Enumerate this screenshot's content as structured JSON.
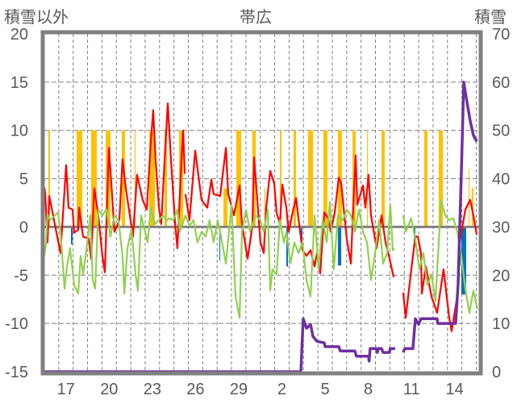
{
  "chart_data": {
    "type": "line",
    "title": "帯広",
    "ylabel": "積雪以外",
    "y2label": "積雪",
    "ylim": [
      -15,
      20
    ],
    "y2lim": [
      0,
      70
    ],
    "xlim": [
      0,
      30.2
    ],
    "yticks": [
      "20",
      "15",
      "10",
      "5",
      "0",
      "-5",
      "-10",
      "-15"
    ],
    "y2ticks": [
      "70",
      "60",
      "50",
      "40",
      "30",
      "20",
      "10",
      "0"
    ],
    "ytick_values": [
      20,
      15,
      10,
      5,
      0,
      -5,
      -10,
      -15
    ],
    "y2tick_values": [
      70,
      60,
      50,
      40,
      30,
      20,
      10,
      0
    ],
    "xtick_labels": [
      "17",
      "20",
      "23",
      "26",
      "29",
      "2",
      "5",
      "8",
      "11",
      "14"
    ],
    "xtick_positions_days": [
      1.5,
      4.5,
      7.5,
      10.5,
      13.5,
      16.5,
      19.5,
      22.5,
      25.5,
      28.5
    ],
    "grid": true,
    "colors": {
      "red": "#ff0000",
      "green": "#92d050",
      "purple": "#7030a0",
      "orange": "#ffc000",
      "blue": "#0070c0",
      "axis": "#808080"
    },
    "series": [
      {
        "name": "red",
        "axis": "left",
        "points": [
          [
            0,
            4.1
          ],
          [
            0.06,
            3.4
          ],
          [
            0.22,
            -1.6
          ],
          [
            0.34,
            3.2
          ],
          [
            1.12,
            -2.7
          ],
          [
            1.51,
            6.4
          ],
          [
            1.68,
            2.0
          ],
          [
            1.96,
            1.8
          ],
          [
            2.07,
            -0.6
          ],
          [
            2.35,
            -0.3
          ],
          [
            2.41,
            2.0
          ],
          [
            2.69,
            -1.0
          ],
          [
            3.08,
            -1.2
          ],
          [
            3.25,
            -3.3
          ],
          [
            3.47,
            4.0
          ],
          [
            3.75,
            1.2
          ],
          [
            4.03,
            -3.0
          ],
          [
            4.2,
            -4.7
          ],
          [
            4.48,
            8.2
          ],
          [
            4.65,
            4.5
          ],
          [
            4.87,
            -0.5
          ],
          [
            5.21,
            0.7
          ],
          [
            5.43,
            7.0
          ],
          [
            5.66,
            4.0
          ],
          [
            6.16,
            -1.0
          ],
          [
            6.44,
            5.4
          ],
          [
            6.83,
            2.8
          ],
          [
            7.11,
            1.8
          ],
          [
            7.39,
            8.7
          ],
          [
            7.56,
            12.1
          ],
          [
            7.73,
            6.8
          ],
          [
            7.96,
            2.0
          ],
          [
            8.12,
            0.3
          ],
          [
            8.4,
            8.2
          ],
          [
            8.57,
            12.8
          ],
          [
            8.8,
            6.8
          ],
          [
            9.08,
            0.3
          ],
          [
            9.24,
            -2.2
          ],
          [
            9.52,
            6.8
          ],
          [
            9.64,
            10.0
          ],
          [
            9.75,
            5.5
          ],
          null,
          [
            9.8,
            3.4
          ],
          [
            10.08,
            0.7
          ],
          [
            10.48,
            7.9
          ],
          [
            10.92,
            2.8
          ],
          [
            11.32,
            2.0
          ],
          [
            11.6,
            4.9
          ],
          [
            11.76,
            3.4
          ],
          [
            12.21,
            3.2
          ],
          [
            12.61,
            8.2
          ],
          [
            12.77,
            3.4
          ],
          [
            13.17,
            1.2
          ],
          [
            13.56,
            4.3
          ],
          [
            13.73,
            0.3
          ],
          [
            14.12,
            -3.3
          ],
          [
            14.45,
            0.1
          ],
          [
            14.57,
            7.2
          ],
          [
            14.73,
            4.0
          ],
          [
            15.01,
            -1.6
          ],
          [
            15.24,
            -2.7
          ],
          [
            15.41,
            2.0
          ],
          [
            15.69,
            5.8
          ],
          [
            15.97,
            4.5
          ],
          [
            16.13,
            1.5
          ],
          [
            16.36,
            0.3
          ],
          [
            16.53,
            4.4
          ],
          [
            16.81,
            2.0
          ],
          [
            16.97,
            -0.5
          ],
          [
            17.2,
            1.2
          ],
          [
            17.48,
            3.0
          ],
          [
            17.65,
            0.9
          ],
          [
            17.93,
            -2.4
          ],
          [
            18.21,
            -3.0
          ],
          [
            18.49,
            -2.4
          ],
          [
            18.77,
            -4.1
          ],
          [
            18.94,
            -2.7
          ],
          [
            19.16,
            -4.8
          ],
          [
            19.44,
            1.5
          ],
          [
            19.72,
            0.9
          ],
          [
            19.89,
            -0.5
          ],
          [
            20.17,
            1.5
          ],
          [
            20.45,
            5.1
          ],
          [
            20.62,
            4.5
          ],
          [
            21.01,
            -1.3
          ],
          [
            21.29,
            -3.8
          ],
          [
            21.46,
            2.3
          ],
          [
            21.62,
            7.4
          ],
          [
            21.74,
            2.3
          ],
          [
            22.13,
            4.3
          ],
          [
            22.3,
            2.0
          ],
          [
            22.52,
            5.4
          ],
          [
            22.69,
            1.2
          ],
          [
            23.08,
            -2.2
          ],
          [
            23.42,
            1.2
          ],
          [
            23.7,
            -1.6
          ],
          [
            23.98,
            -3.3
          ],
          [
            24.26,
            -5.2
          ],
          null,
          [
            24.93,
            -6.8
          ],
          [
            25.1,
            -9.4
          ],
          [
            25.49,
            -4.4
          ],
          [
            25.77,
            -1.0
          ],
          [
            25.94,
            -1.0
          ],
          [
            26.16,
            -2.7
          ],
          [
            26.22,
            -6.9
          ],
          [
            26.5,
            -4.1
          ],
          [
            26.89,
            -7.2
          ],
          [
            27.28,
            -8.9
          ],
          [
            27.73,
            -4.4
          ],
          [
            28.12,
            -9.4
          ],
          [
            28.29,
            -10.8
          ],
          [
            28.68,
            -7.2
          ],
          [
            28.85,
            -1.6
          ],
          [
            29.24,
            1.8
          ],
          [
            29.58,
            2.8
          ],
          [
            29.8,
            1.2
          ],
          [
            30.03,
            -0.8
          ]
        ]
      },
      {
        "name": "green",
        "axis": "left",
        "points": [
          [
            0,
            -3.0
          ],
          [
            0.11,
            -1.8
          ],
          [
            0.22,
            1.3
          ],
          [
            0.39,
            0.7
          ],
          [
            0.95,
            1.5
          ],
          [
            1.12,
            -0.5
          ],
          [
            1.4,
            -6.4
          ],
          [
            1.57,
            -4.1
          ],
          [
            1.79,
            -2.2
          ],
          [
            2.07,
            -6.0
          ],
          [
            2.35,
            -6.9
          ],
          [
            2.52,
            -3.0
          ],
          [
            2.69,
            -4.9
          ],
          [
            2.97,
            -1.8
          ],
          [
            3.19,
            1.2
          ],
          [
            3.36,
            -5.5
          ],
          [
            3.53,
            -6.4
          ],
          [
            3.75,
            1.8
          ],
          [
            4.03,
            1.2
          ],
          [
            4.31,
            1.8
          ],
          [
            4.59,
            -1.0
          ],
          [
            4.87,
            1.2
          ],
          [
            5.15,
            0.7
          ],
          [
            5.43,
            -3.0
          ],
          [
            5.55,
            -6.9
          ],
          [
            5.77,
            -2.2
          ],
          [
            6.05,
            -0.2
          ],
          [
            6.33,
            -4.9
          ],
          [
            6.5,
            -6.6
          ],
          [
            6.72,
            1.2
          ],
          [
            7.0,
            -0.5
          ],
          [
            7.17,
            -1.6
          ],
          [
            7.39,
            2.0
          ],
          [
            7.68,
            0.3
          ],
          [
            7.96,
            0.7
          ],
          [
            8.24,
            1.2
          ],
          [
            8.52,
            0.7
          ],
          [
            8.68,
            0.9
          ],
          [
            8.96,
            0.7
          ],
          [
            9.24,
            1.8
          ],
          [
            9.41,
            -0.5
          ],
          [
            9.8,
            1.2
          ],
          [
            10.08,
            0.1
          ],
          [
            10.36,
            0.7
          ],
          [
            10.64,
            -1.6
          ],
          [
            10.92,
            -0.5
          ],
          [
            11.2,
            -1.0
          ],
          [
            11.48,
            0.7
          ],
          [
            11.76,
            -1.6
          ],
          [
            12.04,
            0.7
          ],
          [
            12.21,
            -0.5
          ],
          [
            12.61,
            -3.8
          ],
          [
            13.0,
            2.3
          ],
          [
            13.28,
            -7.2
          ],
          [
            13.56,
            -9.4
          ],
          [
            13.73,
            -0.5
          ],
          [
            14.01,
            1.8
          ],
          [
            14.29,
            -0.5
          ],
          [
            14.68,
            1.2
          ],
          [
            15.01,
            0.7
          ],
          [
            15.24,
            -0.5
          ],
          [
            15.52,
            1.8
          ],
          [
            15.69,
            -6.6
          ],
          [
            15.85,
            -4.4
          ],
          [
            16.13,
            -4.9
          ],
          [
            16.36,
            0.7
          ],
          [
            16.64,
            -1.6
          ],
          [
            16.81,
            -0.5
          ],
          [
            17.09,
            -3.8
          ],
          [
            17.37,
            -1.6
          ],
          [
            17.65,
            -2.7
          ],
          [
            17.93,
            -1.6
          ],
          [
            18.21,
            -5.5
          ],
          [
            18.49,
            -7.2
          ],
          [
            18.77,
            1.2
          ],
          [
            19.05,
            -4.4
          ],
          [
            19.33,
            0.7
          ],
          [
            19.61,
            -1.6
          ],
          [
            19.83,
            2.6
          ],
          [
            20.11,
            -4.4
          ],
          [
            20.39,
            1.2
          ],
          [
            20.73,
            0.7
          ],
          [
            21.01,
            1.8
          ],
          [
            21.29,
            1.2
          ],
          [
            21.57,
            -0.5
          ],
          [
            21.85,
            1.8
          ],
          [
            22.13,
            -0.5
          ],
          [
            22.41,
            -1.6
          ],
          [
            22.69,
            -5.5
          ],
          [
            22.97,
            -2.7
          ],
          [
            23.25,
            0.7
          ],
          [
            23.53,
            -3.8
          ],
          [
            23.81,
            -2.7
          ],
          [
            24.03,
            2.3
          ],
          [
            24.2,
            -2.4
          ],
          [
            24.31,
            -2.2
          ],
          null,
          [
            24.93,
            1.2
          ],
          [
            25.1,
            -0.5
          ],
          [
            25.49,
            0.9
          ],
          [
            25.77,
            -1.3
          ],
          [
            26.05,
            -4.4
          ],
          [
            26.33,
            -2.7
          ],
          [
            26.61,
            -6.0
          ],
          [
            26.89,
            -4.9
          ],
          [
            27.17,
            -7.7
          ],
          [
            27.34,
            -3.0
          ],
          [
            27.56,
            2.8
          ],
          [
            27.84,
            1.2
          ],
          [
            28.12,
            0.7
          ],
          [
            28.4,
            0.9
          ],
          [
            28.68,
            -0.5
          ],
          [
            28.96,
            -3.0
          ],
          [
            29.24,
            -6.4
          ],
          [
            29.52,
            -8.9
          ],
          [
            29.8,
            -6.6
          ],
          [
            30.08,
            -8.5
          ]
        ]
      },
      {
        "name": "purple",
        "axis": "right",
        "points": [
          [
            0,
            0
          ],
          [
            17.82,
            0
          ],
          [
            17.98,
            11
          ],
          [
            18.21,
            9
          ],
          [
            18.49,
            9.8
          ],
          [
            18.66,
            7.3
          ],
          [
            18.94,
            6.3
          ],
          [
            19.44,
            6.0
          ],
          [
            19.5,
            5.2
          ],
          [
            20.45,
            5.2
          ],
          [
            20.56,
            4.3
          ],
          [
            21.57,
            4.3
          ],
          [
            21.68,
            3.2
          ],
          [
            22.52,
            3.2
          ],
          [
            22.56,
            2.2
          ],
          [
            22.63,
            4.8
          ],
          [
            23.08,
            4.8
          ],
          [
            23.13,
            4.0
          ],
          [
            23.2,
            4.8
          ],
          [
            23.42,
            4.8
          ],
          [
            23.53,
            4.0
          ],
          [
            23.98,
            4.0
          ],
          [
            24.02,
            4.8
          ],
          [
            24.37,
            4.8
          ],
          null,
          [
            24.93,
            4.0
          ],
          [
            25.04,
            4.8
          ],
          [
            25.6,
            4.8
          ],
          [
            25.77,
            11
          ],
          [
            26.0,
            9.8
          ],
          [
            26.16,
            11
          ],
          [
            27.28,
            11
          ],
          [
            27.32,
            10
          ],
          [
            28.57,
            10
          ],
          [
            28.74,
            18
          ],
          [
            29.0,
            45
          ],
          [
            29.13,
            60
          ],
          [
            29.35,
            56
          ],
          [
            29.58,
            52
          ],
          [
            29.8,
            49
          ],
          [
            30.03,
            47.7
          ]
        ]
      }
    ],
    "bars_orange": [
      [
        0.28,
        0.39,
        10
      ],
      [
        2.24,
        2.63,
        10
      ],
      [
        3.25,
        3.64,
        10
      ],
      [
        4.26,
        4.59,
        10
      ],
      [
        5.38,
        5.6,
        10
      ],
      [
        6.27,
        6.33,
        10
      ],
      [
        7.28,
        7.68,
        10
      ],
      [
        8.35,
        8.52,
        10
      ],
      [
        9.36,
        9.64,
        10
      ],
      [
        12.44,
        12.72,
        4
      ],
      [
        13.33,
        13.67,
        10
      ],
      [
        14.45,
        14.68,
        10
      ],
      [
        15.29,
        15.35,
        4
      ],
      [
        16.36,
        16.47,
        10
      ],
      [
        17.31,
        17.48,
        10
      ],
      [
        18.32,
        18.66,
        10
      ],
      [
        19.38,
        19.66,
        10
      ],
      [
        20.39,
        20.67,
        10
      ],
      [
        21.4,
        21.62,
        10
      ],
      [
        22.41,
        22.47,
        10
      ],
      [
        23.42,
        23.64,
        10
      ],
      [
        26.39,
        26.61,
        10
      ],
      [
        27.39,
        27.68,
        10
      ],
      [
        29.47,
        29.52,
        6
      ],
      [
        29.69,
        29.8,
        4
      ]
    ],
    "bars_blue": [
      [
        1.85,
        1.96,
        -1.8
      ],
      [
        12.16,
        12.21,
        -3.5
      ],
      [
        16.81,
        16.92,
        -4.1
      ],
      [
        17.82,
        17.93,
        -2
      ],
      [
        20.39,
        20.62,
        -4
      ],
      [
        25.66,
        25.77,
        -2
      ],
      [
        28.74,
        28.91,
        -4
      ],
      [
        28.96,
        29.3,
        -7
      ]
    ]
  }
}
